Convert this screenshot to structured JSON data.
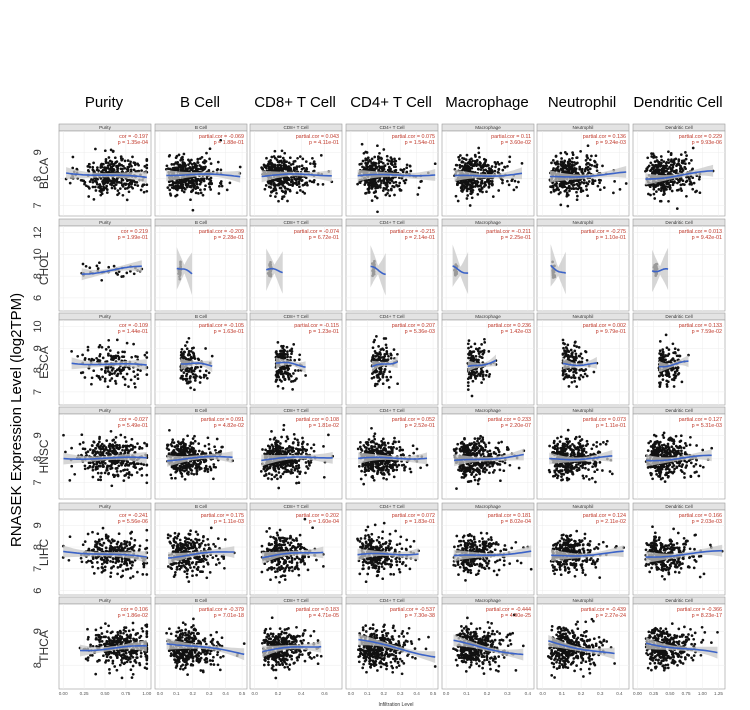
{
  "figure": {
    "y_axis_label": "RNASEK Expression Level (log2TPM)",
    "x_axis_label": "Infiltration Level",
    "column_titles": [
      "Purity",
      "B Cell",
      "CD8+ T Cell",
      "CD4+ T Cell",
      "Macrophage",
      "Neutrophil",
      "Dendritic Cell"
    ],
    "strip_labels": [
      "Purity",
      "B Cell",
      "CD8+ T Cell",
      "CD4+ T Cell",
      "Macrophage",
      "Neutrophil",
      "Dendritic Cell"
    ],
    "colors": {
      "points": "#111111",
      "fit": "#3b63c8",
      "ci": "#c8c8c8",
      "stats": "#c0392b",
      "panel_bg": "#ffffff",
      "grid": "#ececec",
      "strip": "#e3e3e3"
    }
  },
  "chart_data": {
    "type": "scatter",
    "rows": [
      {
        "cancer": "BLCA",
        "y_ticks": [
          "7",
          "8",
          "9"
        ],
        "y_range": [
          6.6,
          9.8
        ],
        "stats": [
          [
            "cor = -0.197",
            "p = 1.35e-04"
          ],
          [
            "partial.cor = -0.069",
            "p = 1.88e-01"
          ],
          [
            "partial.cor = 0.043",
            "p = 4.11e-01"
          ],
          [
            "partial.cor = 0.075",
            "p = 1.54e-01"
          ],
          [
            "partial.cor = 0.11",
            "p = 3.60e-02"
          ],
          [
            "partial.cor = 0.136",
            "p = 9.24e-03"
          ],
          [
            "partial.cor = 0.229",
            "p = 9.93e-06"
          ]
        ]
      },
      {
        "cancer": "CHOL",
        "y_ticks": [
          "6",
          "8",
          "10",
          "12"
        ],
        "y_range": [
          4.8,
          12.6
        ],
        "stats": [
          [
            "cor = 0.219",
            "p = 1.99e-01"
          ],
          [
            "partial.cor = -0.209",
            "p = 2.28e-01"
          ],
          [
            "partial.cor = -0.074",
            "p = 6.72e-01"
          ],
          [
            "partial.cor = -0.215",
            "p = 2.14e-01"
          ],
          [
            "partial.cor = -0.211",
            "p = 2.25e-01"
          ],
          [
            "partial.cor = -0.275",
            "p = 1.10e-01"
          ],
          [
            "partial.cor = 0.013",
            "p = 9.42e-01"
          ]
        ]
      },
      {
        "cancer": "ESCA",
        "y_ticks": [
          "7",
          "8",
          "9",
          "10"
        ],
        "y_range": [
          6.4,
          10.3
        ],
        "stats": [
          [
            "cor = -0.109",
            "p = 1.44e-01"
          ],
          [
            "partial.cor = -0.105",
            "p = 1.63e-01"
          ],
          [
            "partial.cor = -0.115",
            "p = 1.23e-01"
          ],
          [
            "partial.cor = 0.207",
            "p = 5.36e-03"
          ],
          [
            "partial.cor = 0.236",
            "p = 1.42e-03"
          ],
          [
            "partial.cor = 0.002",
            "p = 9.79e-01"
          ],
          [
            "partial.cor = 0.133",
            "p = 7.59e-02"
          ]
        ]
      },
      {
        "cancer": "HNSC",
        "y_ticks": [
          "7",
          "8",
          "9"
        ],
        "y_range": [
          6.3,
          9.9
        ],
        "stats": [
          [
            "cor = -0.027",
            "p = 5.49e-01"
          ],
          [
            "partial.cor = 0.091",
            "p = 4.82e-02"
          ],
          [
            "partial.cor = 0.108",
            "p = 1.81e-02"
          ],
          [
            "partial.cor = 0.052",
            "p = 2.52e-01"
          ],
          [
            "partial.cor = 0.233",
            "p = 2.20e-07"
          ],
          [
            "partial.cor = 0.073",
            "p = 1.11e-01"
          ],
          [
            "partial.cor = 0.127",
            "p = 5.31e-03"
          ]
        ]
      },
      {
        "cancer": "LIHC",
        "y_ticks": [
          "6",
          "7",
          "8",
          "9"
        ],
        "y_range": [
          5.8,
          9.7
        ],
        "stats": [
          [
            "cor = -0.241",
            "p = 5.56e-06"
          ],
          [
            "partial.cor = 0.175",
            "p = 1.11e-03"
          ],
          [
            "partial.cor = 0.202",
            "p = 1.60e-04"
          ],
          [
            "partial.cor = 0.072",
            "p = 1.83e-01"
          ],
          [
            "partial.cor = 0.181",
            "p = 8.02e-04"
          ],
          [
            "partial.cor = 0.124",
            "p = 2.11e-02"
          ],
          [
            "partial.cor = 0.166",
            "p = 2.03e-03"
          ]
        ]
      },
      {
        "cancer": "THCA",
        "y_ticks": [
          "8",
          "9"
        ],
        "y_range": [
          7.3,
          9.8
        ],
        "stats": [
          [
            "cor = 0.106",
            "p = 1.86e-02"
          ],
          [
            "partial.cor = -0.379",
            "p = 7.01e-18"
          ],
          [
            "partial.cor = 0.183",
            "p = 4.71e-05"
          ],
          [
            "partial.cor = -0.537",
            "p = 7.30e-38"
          ],
          [
            "partial.cor = -0.444",
            "p = 4.90e-25"
          ],
          [
            "partial.cor = -0.439",
            "p = 2.27e-24"
          ],
          [
            "partial.cor = -0.366",
            "p = 8.23e-17"
          ]
        ]
      }
    ],
    "columns": [
      {
        "name": "Purity",
        "x_ticks": [
          "0.00",
          "0.25",
          "0.50",
          "0.75",
          "1.00"
        ],
        "x_range": [
          -0.05,
          1.05
        ]
      },
      {
        "name": "B Cell",
        "x_ticks": [
          "0.0",
          "0.1",
          "0.2",
          "0.3",
          "0.4",
          "0.5"
        ],
        "x_range": [
          -0.03,
          0.53
        ]
      },
      {
        "name": "CD8+ T Cell",
        "x_ticks": [
          "0.0",
          "0.2",
          "0.4",
          "0.6"
        ],
        "x_range": [
          -0.04,
          0.75
        ]
      },
      {
        "name": "CD4+ T Cell",
        "x_ticks": [
          "0.0",
          "0.1",
          "0.2",
          "0.3",
          "0.4",
          "0.5"
        ],
        "x_range": [
          -0.03,
          0.53
        ]
      },
      {
        "name": "Macrophage",
        "x_ticks": [
          "0.0",
          "0.1",
          "0.2",
          "0.3",
          "0.4"
        ],
        "x_range": [
          -0.02,
          0.43
        ]
      },
      {
        "name": "Neutrophil",
        "x_ticks": [
          "0.0",
          "0.1",
          "0.2",
          "0.3",
          "0.4"
        ],
        "x_range": [
          -0.03,
          0.45
        ]
      },
      {
        "name": "Dendritic Cell",
        "x_ticks": [
          "0.00",
          "0.25",
          "0.50",
          "0.75",
          "1.00",
          "1.25"
        ],
        "x_range": [
          -0.07,
          1.35
        ]
      }
    ]
  }
}
